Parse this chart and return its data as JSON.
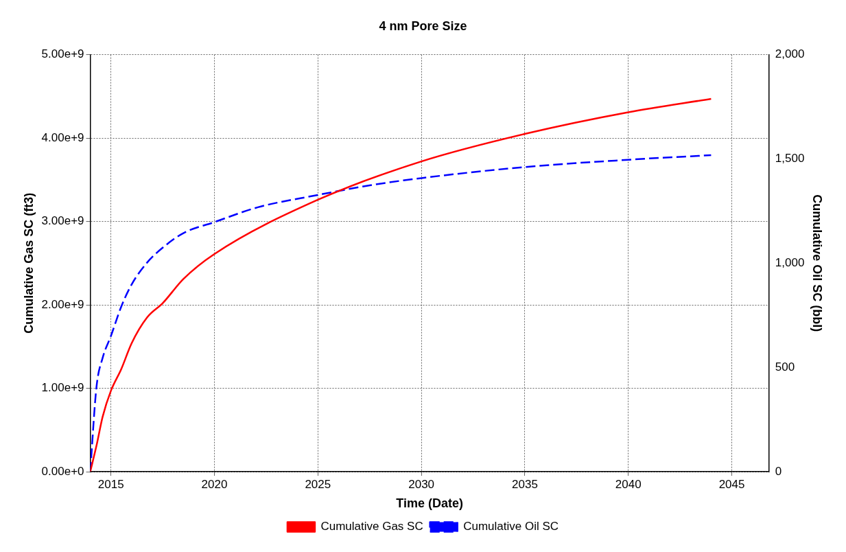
{
  "chart_data": {
    "type": "line",
    "title": "4 nm Pore Size",
    "xlabel": "Time (Date)",
    "ylabel": "Cumulative Gas SC (ft3)",
    "y2label": "Cumulative Oil SC (bbl)",
    "xlim": [
      2014,
      2046.8
    ],
    "xticks": [
      2015,
      2020,
      2025,
      2030,
      2035,
      2040,
      2045
    ],
    "ylim": [
      0,
      5000000000
    ],
    "yticks": [
      {
        "value": 0,
        "label": "0.00e+0"
      },
      {
        "value": 1000000000,
        "label": "1.00e+9"
      },
      {
        "value": 2000000000,
        "label": "2.00e+9"
      },
      {
        "value": 3000000000,
        "label": "3.00e+9"
      },
      {
        "value": 4000000000,
        "label": "4.00e+9"
      },
      {
        "value": 5000000000,
        "label": "5.00e+9"
      }
    ],
    "y2lim": [
      0,
      2000
    ],
    "y2ticks": [
      0,
      500,
      {
        "value": 1000,
        "label": "1,000"
      },
      {
        "value": 1500,
        "label": "1,500"
      },
      {
        "value": 2000,
        "label": "2,000"
      }
    ],
    "grid": true,
    "legend": "bottom",
    "marker": "none",
    "series": [
      {
        "name": "Cumulative Gas SC",
        "color": "#ff0000",
        "line_style": "solid",
        "x": [
          2014,
          2014.3,
          2014.6,
          2015,
          2015.5,
          2016,
          2016.75,
          2017.5,
          2018.5,
          2020,
          2025,
          2030,
          2035,
          2040,
          2044
        ],
        "values": [
          0,
          310000000,
          660000000,
          970000000,
          1230000000,
          1540000000,
          1850000000,
          2020000000,
          2310000000,
          2610000000,
          3260000000,
          3720000000,
          4050000000,
          4310000000,
          4470000000
        ]
      },
      {
        "name": "Cumulative Oil SC",
        "color": "#0000ff",
        "line_style": "dashed",
        "axis": "y2",
        "x": [
          2014,
          2014.3,
          2014.6,
          2015,
          2015.5,
          2016,
          2016.75,
          2017.5,
          2018.5,
          2020,
          2022.1,
          2025,
          2027.5,
          2030,
          2035,
          2040,
          2044
        ],
        "values": [
          0,
          405,
          546,
          651,
          792,
          898,
          1003,
          1074,
          1144,
          1197,
          1268,
          1327,
          1373,
          1408,
          1461,
          1496,
          1518
        ]
      }
    ]
  }
}
